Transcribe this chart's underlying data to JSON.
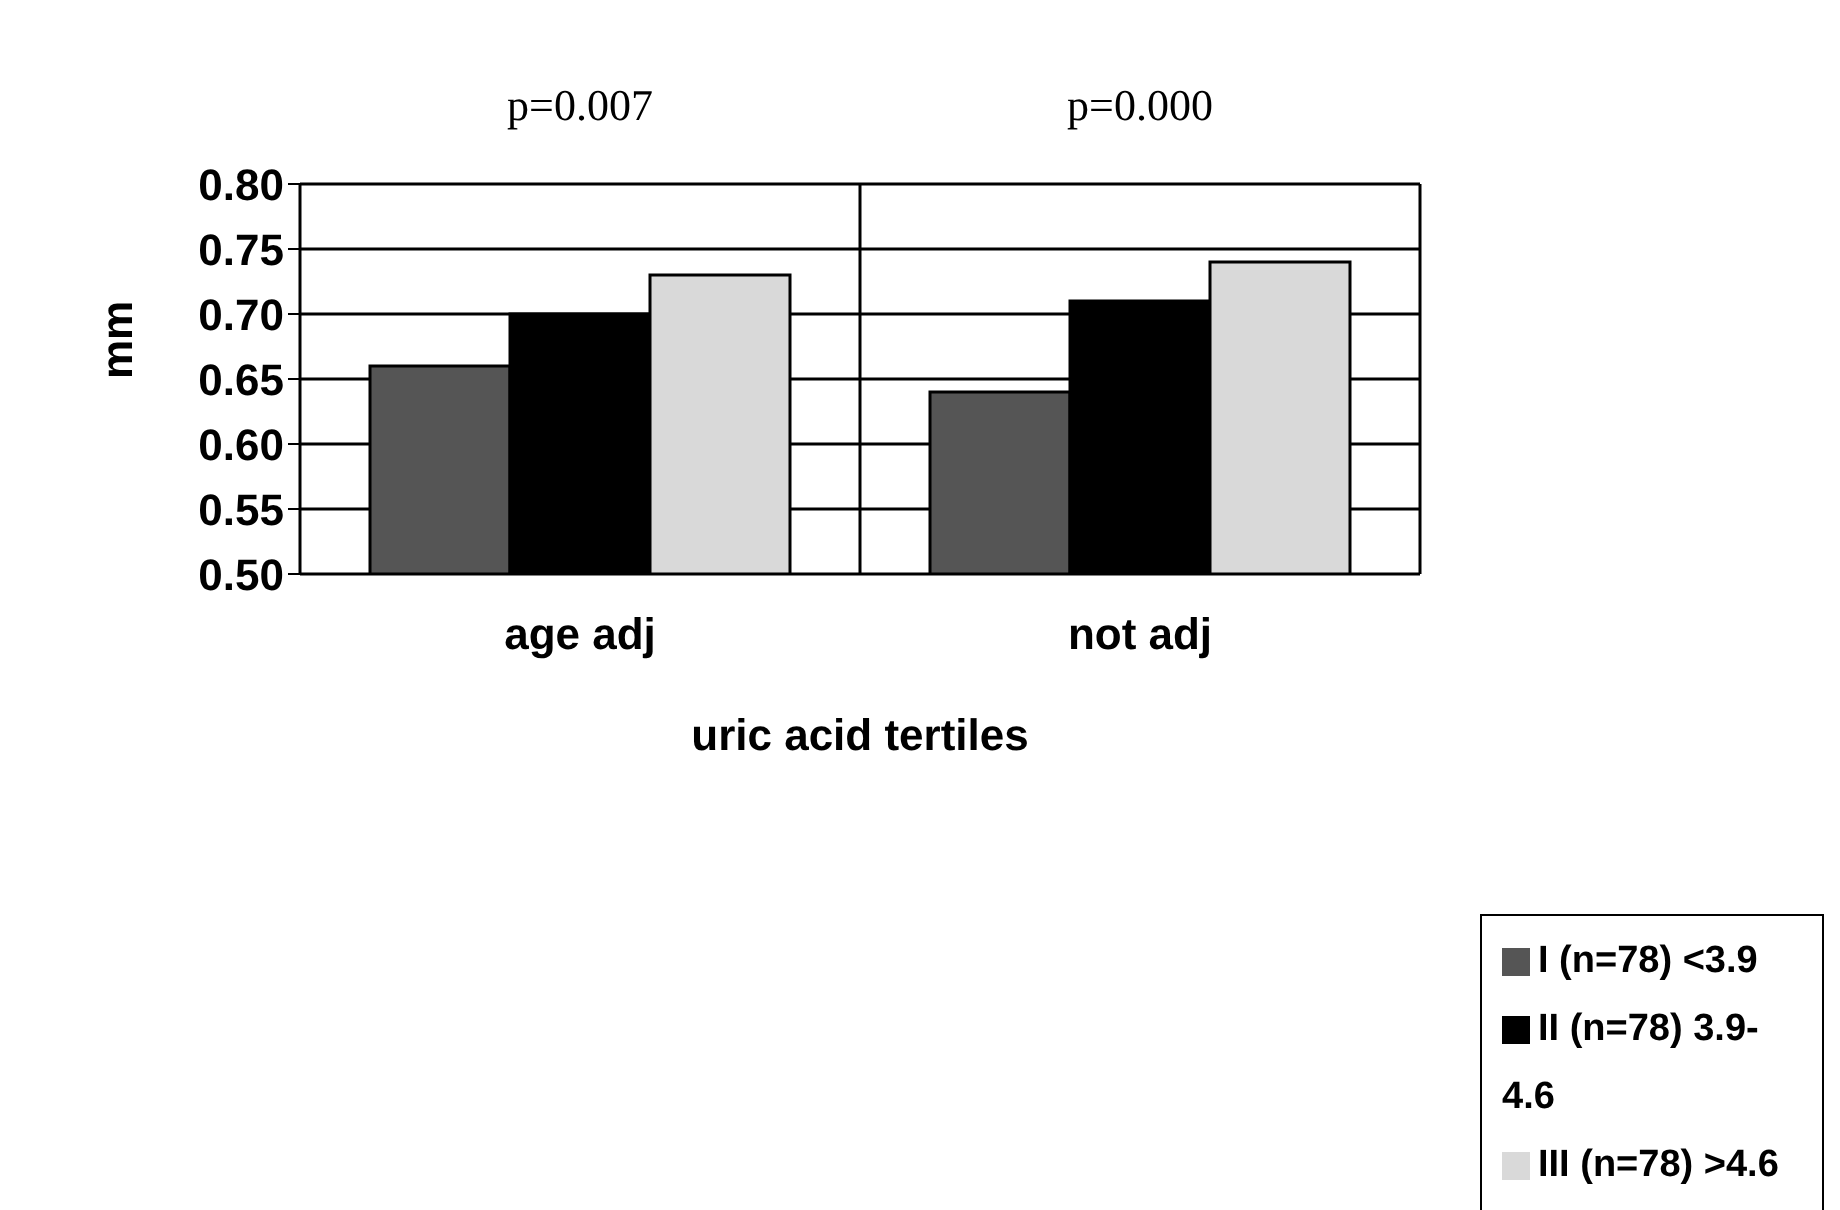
{
  "chart_data": {
    "type": "bar",
    "ylabel": "mm",
    "xlabel": "uric acid tertiles",
    "categories": [
      "age adj",
      "not adj"
    ],
    "series": [
      {
        "name": "I (n=78) <3.9",
        "color": "#555555",
        "values": [
          0.66,
          0.64
        ]
      },
      {
        "name": "II (n=78) 3.9-4.6",
        "color": "#000000",
        "values": [
          0.7,
          0.71
        ]
      },
      {
        "name": "III (n=78) >4.6",
        "color": "#d9d9d9",
        "values": [
          0.73,
          0.74
        ]
      }
    ],
    "ylim": [
      0.5,
      0.8
    ],
    "yticks": [
      {
        "value": 0.5,
        "label": "0.50"
      },
      {
        "value": 0.55,
        "label": "0.55"
      },
      {
        "value": 0.6,
        "label": "0.60"
      },
      {
        "value": 0.65,
        "label": "0.65"
      },
      {
        "value": 0.7,
        "label": "0.70"
      },
      {
        "value": 0.75,
        "label": "0.75"
      },
      {
        "value": 0.8,
        "label": "0.80"
      }
    ],
    "annotations": [
      "p=0.007",
      "p=0.000"
    ],
    "grid": true,
    "legend": "bottom right"
  }
}
